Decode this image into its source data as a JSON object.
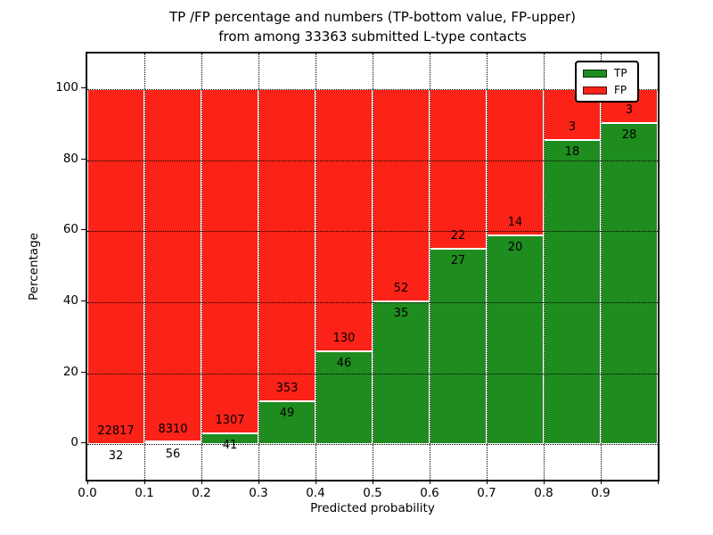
{
  "figure": {
    "title_line1": "TP /FP percentage and numbers (TP-bottom value, FP-upper)",
    "title_line2": "from among 33363 submitted L-type contacts"
  },
  "chart_data": {
    "type": "bar",
    "stacked": true,
    "normalized_to": 100,
    "title": "TP /FP percentage and numbers (TP-bottom value, FP-upper) from among 33363 submitted L-type contacts",
    "total_submitted_contacts": 33363,
    "xlabel": "Predicted probability",
    "ylabel": "Percentage",
    "xlim": [
      0.0,
      1.0
    ],
    "ylim": [
      -10,
      110
    ],
    "bin_width": 0.1,
    "grid": true,
    "legend_position": "upper right",
    "xticks": [
      "0.0",
      "0.1",
      "0.2",
      "0.3",
      "0.4",
      "0.5",
      "0.6",
      "0.7",
      "0.8",
      "0.9"
    ],
    "yticks": [
      0,
      20,
      40,
      60,
      80,
      100
    ],
    "categories": [
      "0.0-0.1",
      "0.1-0.2",
      "0.2-0.3",
      "0.3-0.4",
      "0.4-0.5",
      "0.5-0.6",
      "0.6-0.7",
      "0.7-0.8",
      "0.8-0.9",
      "0.9-1.0"
    ],
    "series": [
      {
        "name": "TP",
        "color": "#1f8c1f",
        "counts": [
          32,
          56,
          41,
          49,
          46,
          35,
          27,
          20,
          18,
          28
        ]
      },
      {
        "name": "FP",
        "color": "#fb2318",
        "counts": [
          22817,
          8310,
          1307,
          353,
          130,
          52,
          22,
          14,
          3,
          3
        ]
      }
    ],
    "bar_edge_color": "#ffffff",
    "legend": [
      {
        "label": "TP",
        "color": "#1f8c1f"
      },
      {
        "label": "FP",
        "color": "#fb2318"
      }
    ]
  }
}
